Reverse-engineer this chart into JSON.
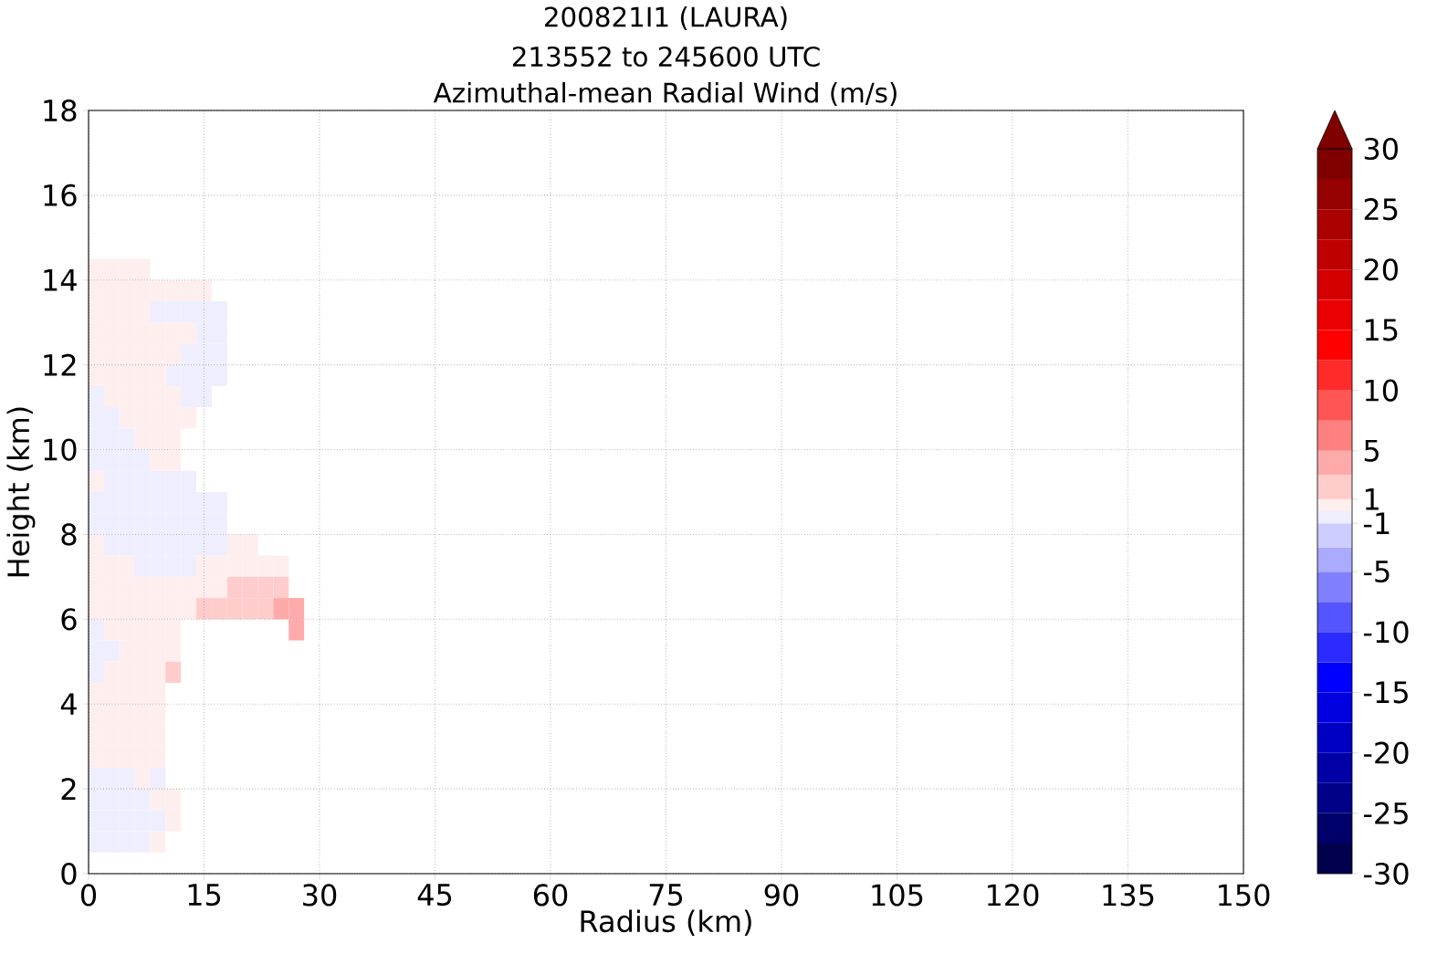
{
  "chart_data": {
    "type": "heatmap",
    "title": "200821I1 (LAURA)",
    "subtitle": "213552 to 245600 UTC",
    "annotations": [
      "Azimuthal-mean Radial Wind (m/s)"
    ],
    "xlabel": "Radius (km)",
    "ylabel": "Height (km)",
    "xlim": [
      0,
      150
    ],
    "ylim": [
      0,
      18
    ],
    "xticks": [
      0,
      15,
      30,
      45,
      60,
      75,
      90,
      105,
      120,
      135,
      150
    ],
    "yticks": [
      0,
      2,
      4,
      6,
      8,
      10,
      12,
      14,
      16,
      18
    ],
    "grid": true,
    "clim": [
      -30,
      30
    ],
    "cticks": [
      -30,
      -25,
      -20,
      -15,
      -10,
      -5,
      -1,
      1,
      5,
      10,
      15,
      20,
      25,
      30
    ],
    "x": [
      1,
      3,
      5,
      7,
      9,
      11,
      13,
      15,
      17,
      19,
      21,
      23,
      25,
      27
    ],
    "y": [
      14.25,
      13.75,
      13.25,
      12.75,
      12.25,
      11.75,
      11.25,
      10.75,
      10.25,
      9.75,
      9.25,
      8.75,
      8.25,
      7.75,
      7.25,
      6.75,
      6.25,
      5.75,
      5.25,
      4.75,
      4.25,
      3.75,
      3.25,
      2.75,
      2.25,
      1.75,
      1.25,
      0.75
    ],
    "cells": [
      [
        0.5,
        0.5,
        0.5,
        0.5,
        null,
        null,
        null,
        null,
        null,
        null,
        null,
        null,
        null,
        null
      ],
      [
        0.5,
        0.5,
        0.5,
        0.5,
        0.5,
        0.5,
        0.5,
        0.5,
        null,
        null,
        null,
        null,
        null,
        null
      ],
      [
        0.5,
        0.5,
        0.5,
        0.5,
        -0.5,
        -0.5,
        -0.5,
        -0.5,
        -0.5,
        null,
        null,
        null,
        null,
        null
      ],
      [
        0.5,
        0.5,
        0.5,
        0.5,
        0.5,
        0.5,
        0.5,
        -0.5,
        -0.5,
        null,
        null,
        null,
        null,
        null
      ],
      [
        0.5,
        0.5,
        0.5,
        0.5,
        0.5,
        0.5,
        -0.5,
        -0.5,
        -0.5,
        null,
        null,
        null,
        null,
        null
      ],
      [
        0.5,
        0.5,
        0.5,
        0.5,
        0.5,
        -0.5,
        -0.5,
        -0.5,
        -0.5,
        null,
        null,
        null,
        null,
        null
      ],
      [
        -0.5,
        0.5,
        0.5,
        0.5,
        0.5,
        0.5,
        -0.5,
        -0.5,
        null,
        null,
        null,
        null,
        null,
        null
      ],
      [
        -0.5,
        -0.5,
        0.5,
        0.5,
        0.5,
        0.5,
        0.5,
        null,
        null,
        null,
        null,
        null,
        null,
        null
      ],
      [
        -0.5,
        -0.5,
        -0.5,
        0.5,
        0.5,
        0.5,
        null,
        null,
        null,
        null,
        null,
        null,
        null,
        null
      ],
      [
        -0.5,
        -0.5,
        -0.5,
        -0.5,
        0.5,
        0.5,
        null,
        null,
        null,
        null,
        null,
        null,
        null,
        null
      ],
      [
        0.5,
        -0.5,
        -0.5,
        -0.5,
        -0.5,
        -0.5,
        -0.5,
        null,
        null,
        null,
        null,
        null,
        null,
        null
      ],
      [
        -0.5,
        -0.5,
        -0.5,
        -0.5,
        -0.5,
        -0.5,
        -0.5,
        -0.5,
        -0.5,
        null,
        null,
        null,
        null,
        null
      ],
      [
        -0.5,
        -0.5,
        -0.5,
        -0.5,
        -0.5,
        -0.5,
        -0.5,
        -0.5,
        -0.5,
        null,
        null,
        null,
        null,
        null
      ],
      [
        0.5,
        -0.5,
        -0.5,
        -0.5,
        -0.5,
        -0.5,
        -0.5,
        -0.5,
        -0.5,
        0.5,
        0.5,
        null,
        null,
        null
      ],
      [
        0.5,
        0.5,
        0.5,
        -0.5,
        -0.5,
        -0.5,
        -0.5,
        0.5,
        0.5,
        0.5,
        0.5,
        0.5,
        0.5,
        null
      ],
      [
        0.5,
        0.5,
        0.5,
        0.5,
        0.5,
        0.5,
        0.5,
        0.5,
        0.5,
        2,
        2,
        2,
        2,
        null
      ],
      [
        0.5,
        0.5,
        0.5,
        0.5,
        0.5,
        0.5,
        0.5,
        2,
        2,
        2,
        2,
        2,
        4,
        4
      ],
      [
        -0.5,
        0.5,
        0.5,
        0.5,
        0.5,
        0.5,
        null,
        null,
        null,
        null,
        null,
        null,
        null,
        4
      ],
      [
        -0.5,
        -0.5,
        0.5,
        0.5,
        0.5,
        0.5,
        null,
        null,
        null,
        null,
        null,
        null,
        null,
        null
      ],
      [
        -0.5,
        0.5,
        0.5,
        0.5,
        0.5,
        2,
        null,
        null,
        null,
        null,
        null,
        null,
        null,
        null
      ],
      [
        0.5,
        0.5,
        0.5,
        0.5,
        0.5,
        null,
        null,
        null,
        null,
        null,
        null,
        null,
        null,
        null
      ],
      [
        0.5,
        0.5,
        0.5,
        0.5,
        0.5,
        null,
        null,
        null,
        null,
        null,
        null,
        null,
        null,
        null
      ],
      [
        0.5,
        0.5,
        0.5,
        0.5,
        0.5,
        null,
        null,
        null,
        null,
        null,
        null,
        null,
        null,
        null
      ],
      [
        0.5,
        0.5,
        0.5,
        0.5,
        0.5,
        null,
        null,
        null,
        null,
        null,
        null,
        null,
        null,
        null
      ],
      [
        -0.5,
        -0.5,
        -0.5,
        0.5,
        -0.5,
        null,
        null,
        null,
        null,
        null,
        null,
        null,
        null,
        null
      ],
      [
        -0.5,
        -0.5,
        -0.5,
        -0.5,
        0.5,
        0.5,
        null,
        null,
        null,
        null,
        null,
        null,
        null,
        null
      ],
      [
        -0.5,
        -0.5,
        -0.5,
        -0.5,
        -0.5,
        0.5,
        null,
        null,
        null,
        null,
        null,
        null,
        null,
        null
      ],
      [
        -0.5,
        -0.5,
        -0.5,
        -0.5,
        0.5,
        null,
        null,
        null,
        null,
        null,
        null,
        null,
        null,
        null
      ]
    ]
  }
}
